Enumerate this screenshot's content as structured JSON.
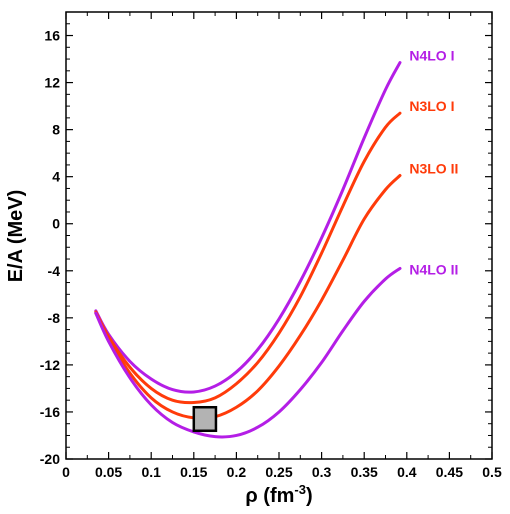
{
  "chart_data": {
    "type": "line",
    "title": "",
    "xlabel": "ρ (fm",
    "xlabel_sup": "-3",
    "xlabel_close": ")",
    "ylabel": "E/A (MeV)",
    "xlim": [
      0,
      0.5
    ],
    "ylim": [
      -20,
      18
    ],
    "xticks": [
      0,
      0.05,
      0.1,
      0.15,
      0.2,
      0.25,
      0.3,
      0.35,
      0.4,
      0.45,
      0.5
    ],
    "xtick_labels": [
      "0",
      "0.05",
      "0.1",
      "0.15",
      "0.2",
      "0.25",
      "0.3",
      "0.35",
      "0.4",
      "0.45",
      "0.5"
    ],
    "yticks": [
      -20,
      -16,
      -12,
      -8,
      -4,
      0,
      4,
      8,
      12,
      16
    ],
    "ytick_labels": [
      "-20",
      "-16",
      "-12",
      "-8",
      "-4",
      "0",
      "4",
      "8",
      "12",
      "16"
    ],
    "grid": false,
    "legend": "inline labels at curve ends",
    "series": [
      {
        "name": "N4LO I",
        "color": "#b41ee6",
        "x": [
          0.035,
          0.05,
          0.075,
          0.1,
          0.125,
          0.15,
          0.175,
          0.2,
          0.225,
          0.25,
          0.275,
          0.3,
          0.325,
          0.35,
          0.375,
          0.392
        ],
        "y": [
          -7.4,
          -9.4,
          -11.7,
          -13.2,
          -14.1,
          -14.3,
          -13.8,
          -12.6,
          -10.7,
          -8.1,
          -4.9,
          -1.2,
          2.9,
          7.3,
          11.4,
          13.7
        ]
      },
      {
        "name": "N3LO I",
        "color": "#ff3b0a",
        "x": [
          0.035,
          0.05,
          0.075,
          0.1,
          0.125,
          0.15,
          0.175,
          0.2,
          0.225,
          0.25,
          0.275,
          0.3,
          0.325,
          0.35,
          0.375,
          0.392
        ],
        "y": [
          -7.5,
          -9.6,
          -12.2,
          -14.0,
          -15.0,
          -15.2,
          -14.8,
          -13.6,
          -11.8,
          -9.3,
          -6.2,
          -2.5,
          1.5,
          5.3,
          8.2,
          9.4
        ]
      },
      {
        "name": "N3LO II",
        "color": "#ff3b0a",
        "x": [
          0.035,
          0.05,
          0.075,
          0.1,
          0.125,
          0.15,
          0.175,
          0.2,
          0.225,
          0.25,
          0.275,
          0.3,
          0.325,
          0.35,
          0.375,
          0.392
        ],
        "y": [
          -7.6,
          -9.8,
          -12.7,
          -14.8,
          -16.0,
          -16.5,
          -16.4,
          -15.6,
          -14.2,
          -12.1,
          -9.5,
          -6.5,
          -3.1,
          0.4,
          2.9,
          4.1
        ]
      },
      {
        "name": "N4LO II",
        "color": "#b41ee6",
        "x": [
          0.035,
          0.05,
          0.075,
          0.1,
          0.125,
          0.15,
          0.175,
          0.2,
          0.225,
          0.25,
          0.275,
          0.3,
          0.325,
          0.35,
          0.375,
          0.392
        ],
        "y": [
          -7.6,
          -10.0,
          -13.1,
          -15.4,
          -16.9,
          -17.7,
          -18.1,
          -18.0,
          -17.3,
          -16.0,
          -14.1,
          -11.8,
          -9.1,
          -6.6,
          -4.7,
          -3.8
        ]
      }
    ],
    "label_positions": [
      {
        "name": "N4LO I",
        "y": 14.3
      },
      {
        "name": "N3LO I",
        "y": 10.0
      },
      {
        "name": "N3LO II",
        "y": 4.7
      },
      {
        "name": "N4LO II",
        "y": -3.9
      }
    ],
    "saturation_box": {
      "x_range": [
        0.15,
        0.176
      ],
      "y_range": [
        -17.6,
        -15.6
      ],
      "fill": "#b3b3b3",
      "stroke": "#000000"
    }
  }
}
